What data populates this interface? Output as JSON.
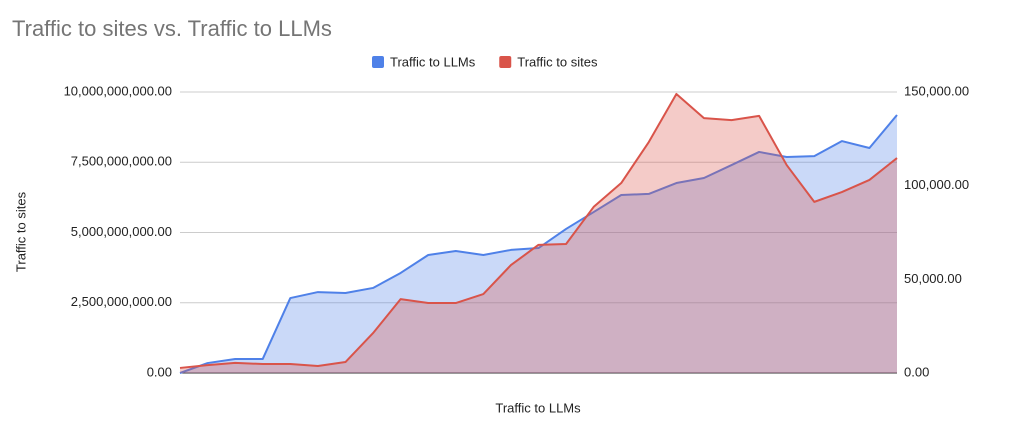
{
  "chart_data": {
    "type": "area",
    "title": "Traffic to sites vs. Traffic to LLMs",
    "x_label": "Traffic to LLMs",
    "y_label": "Traffic to sites",
    "categories": [
      null,
      null,
      null,
      null,
      null,
      null,
      null,
      null,
      null,
      null,
      null,
      null,
      null,
      null,
      null,
      null,
      null,
      null,
      null,
      null,
      null,
      null,
      null,
      null,
      null,
      null,
      null
    ],
    "legend_position": "top",
    "grid": true,
    "ylim": [
      0,
      10000000000
    ],
    "yticks": [
      {
        "value": 0,
        "label": "0.00"
      },
      {
        "value": 2500000000,
        "label": "2,500,000,000.00"
      },
      {
        "value": 5000000000,
        "label": "5,000,000,000.00"
      },
      {
        "value": 7500000000,
        "label": "7,500,000,000.00"
      },
      {
        "value": 10000000000,
        "label": "10,000,000,000.00"
      }
    ],
    "y2lim": [
      0,
      150000
    ],
    "y2ticks": [
      {
        "value": 0,
        "label": "0.00"
      },
      {
        "value": 50000,
        "label": "50,000.00"
      },
      {
        "value": 100000,
        "label": "100,000.00"
      },
      {
        "value": 150000,
        "label": "150,000.00"
      }
    ],
    "series": [
      {
        "name": "Traffic to LLMs",
        "color": "#4f81e8",
        "axis": "y2",
        "values": [
          0,
          5300,
          7500,
          7500,
          40000,
          43200,
          42700,
          45400,
          53400,
          63000,
          65100,
          63000,
          65700,
          66700,
          76900,
          85900,
          95000,
          95600,
          101400,
          104100,
          111000,
          118000,
          115300,
          115800,
          123800,
          120100,
          137700
        ]
      },
      {
        "name": "Traffic to sites",
        "color": "#d9544a",
        "values": [
          180000000,
          280000000,
          360000000,
          320000000,
          320000000,
          250000000,
          390000000,
          1420000000,
          2630000000,
          2490000000,
          2490000000,
          2810000000,
          3840000000,
          4560000000,
          4590000000,
          5910000000,
          6760000000,
          8220000000,
          9930000000,
          9070000000,
          9000000000,
          9150000000,
          7400000000,
          6090000000,
          6440000000,
          6870000000,
          7650000000
        ]
      }
    ]
  }
}
